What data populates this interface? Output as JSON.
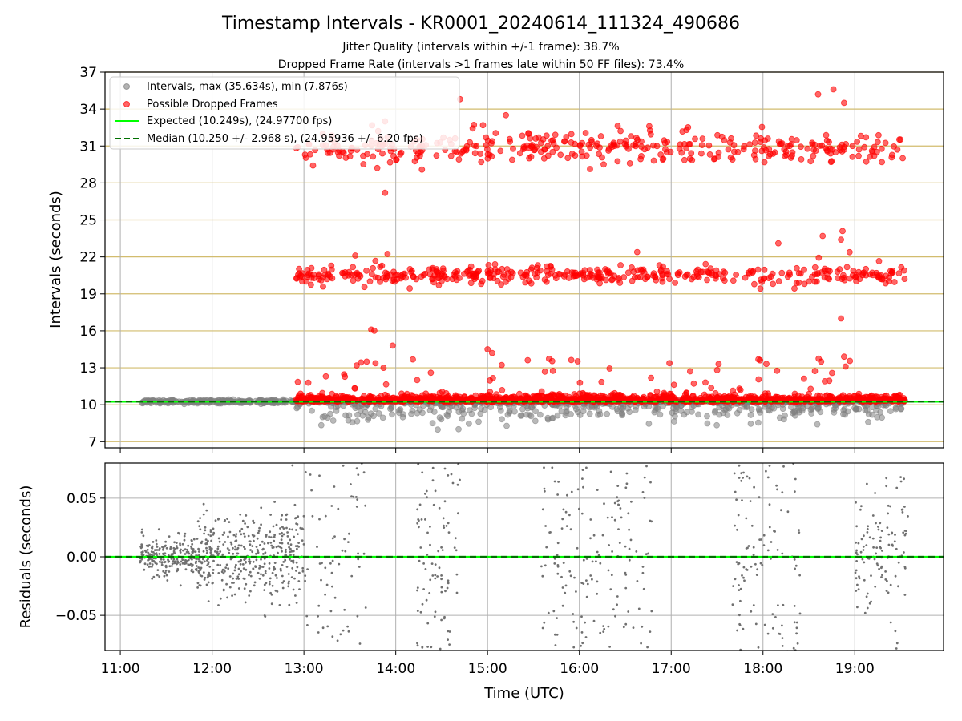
{
  "title": "Timestamp Intervals - KR0001_20240614_111324_490686",
  "subtitles": [
    "Jitter Quality (intervals within +/-1 frame): 38.7%",
    "Dropped Frame Rate (intervals >1 frames late within 50 FF files): 73.4%"
  ],
  "colors": {
    "intervals": "#808080",
    "dropped": "#ff0000",
    "expected": "#00ff00",
    "median": "#007000",
    "ygrid": "#d2bc6e",
    "xgrid": "#b0b0b0"
  },
  "chart_data": [
    {
      "type": "scatter",
      "ylabel": "Intervals (seconds)",
      "xlim": [
        "10:50",
        "19:58"
      ],
      "ylim": [
        6.5,
        37
      ],
      "x_ticks": [
        "11:00",
        "12:00",
        "13:00",
        "14:00",
        "15:00",
        "16:00",
        "17:00",
        "18:00",
        "19:00"
      ],
      "y_ticks": [
        "7",
        "10",
        "13",
        "16",
        "19",
        "22",
        "25",
        "28",
        "31",
        "34",
        "37"
      ],
      "grid": true,
      "legend_position": "top-left",
      "legend": [
        "Intervals, max (35.634s), min (7.876s)",
        "Possible Dropped Frames",
        "Expected (10.249s), (24.97700 fps)",
        "Median (10.250 +/- 2.968 s), (24.95936 +/- 6.20 fps)"
      ],
      "reference_lines": {
        "expected": 10.249,
        "median": 10.25
      },
      "series": [
        {
          "name": "Intervals, max (35.634s), min (7.876s)",
          "x_range": [
            "11:13",
            "19:33"
          ],
          "dense_band": {
            "center": 10.25,
            "low": 7.9,
            "high": 10.3,
            "count": 1100
          },
          "max": 35.634,
          "min": 7.876
        },
        {
          "name": "Possible Dropped Frames",
          "x_range": [
            "12:55",
            "19:33"
          ],
          "bands": [
            {
              "center": 10.4,
              "spread": 0.25,
              "count": 1250
            },
            {
              "center": 20.5,
              "spread": 0.35,
              "count": 420
            },
            {
              "center": 30.8,
              "spread": 0.6,
              "count": 360
            }
          ],
          "outliers": [
            {
              "x": "13:44",
              "y": 16.1
            },
            {
              "x": "13:46",
              "y": 16.0
            },
            {
              "x": "13:58",
              "y": 14.8
            },
            {
              "x": "13:53",
              "y": 27.2
            },
            {
              "x": "14:42",
              "y": 34.8
            },
            {
              "x": "18:46",
              "y": 35.6
            },
            {
              "x": "18:36",
              "y": 35.2
            },
            {
              "x": "18:53",
              "y": 34.5
            },
            {
              "x": "18:52",
              "y": 24.1
            },
            {
              "x": "18:51",
              "y": 23.4
            },
            {
              "x": "18:53",
              "y": 13.9
            },
            {
              "x": "18:51",
              "y": 17.0
            },
            {
              "x": "18:54",
              "y": 13.1
            },
            {
              "x": "15:00",
              "y": 14.5
            },
            {
              "x": "15:03",
              "y": 14.2
            },
            {
              "x": "13:41",
              "y": 13.5
            },
            {
              "x": "17:31",
              "y": 13.3
            },
            {
              "x": "18:38",
              "y": 13.5
            },
            {
              "x": "18:10",
              "y": 23.1
            },
            {
              "x": "18:39",
              "y": 23.7
            },
            {
              "x": "13:53",
              "y": 33.0
            },
            {
              "x": "15:12",
              "y": 33.5
            }
          ]
        }
      ]
    },
    {
      "type": "scatter",
      "xlabel": "Time (UTC)",
      "ylabel": "Residuals (seconds)",
      "xlim": [
        "10:50",
        "19:58"
      ],
      "ylim": [
        -0.08,
        0.08
      ],
      "x_ticks": [
        "11:00",
        "12:00",
        "13:00",
        "14:00",
        "15:00",
        "16:00",
        "17:00",
        "18:00",
        "19:00"
      ],
      "y_ticks": [
        "0.05",
        "0.00",
        "−0.05"
      ],
      "grid": true,
      "reference_lines": {
        "expected": 0.0,
        "median": 0.0
      },
      "series": [
        {
          "name": "Residuals",
          "clusters": [
            {
              "from": "11:13",
              "to": "11:50",
              "spread": 0.012,
              "count": 230
            },
            {
              "from": "11:50",
              "to": "13:00",
              "spread": 0.026,
              "count": 420
            },
            {
              "from": "13:00",
              "to": "13:42",
              "spread": 0.07,
              "count": 70
            },
            {
              "from": "14:13",
              "to": "14:42",
              "spread": 0.07,
              "count": 95
            },
            {
              "from": "15:35",
              "to": "16:48",
              "spread": 0.07,
              "count": 170
            },
            {
              "from": "17:40",
              "to": "18:25",
              "spread": 0.06,
              "count": 120
            },
            {
              "from": "19:00",
              "to": "19:35",
              "spread": 0.045,
              "count": 120
            }
          ]
        }
      ]
    }
  ]
}
